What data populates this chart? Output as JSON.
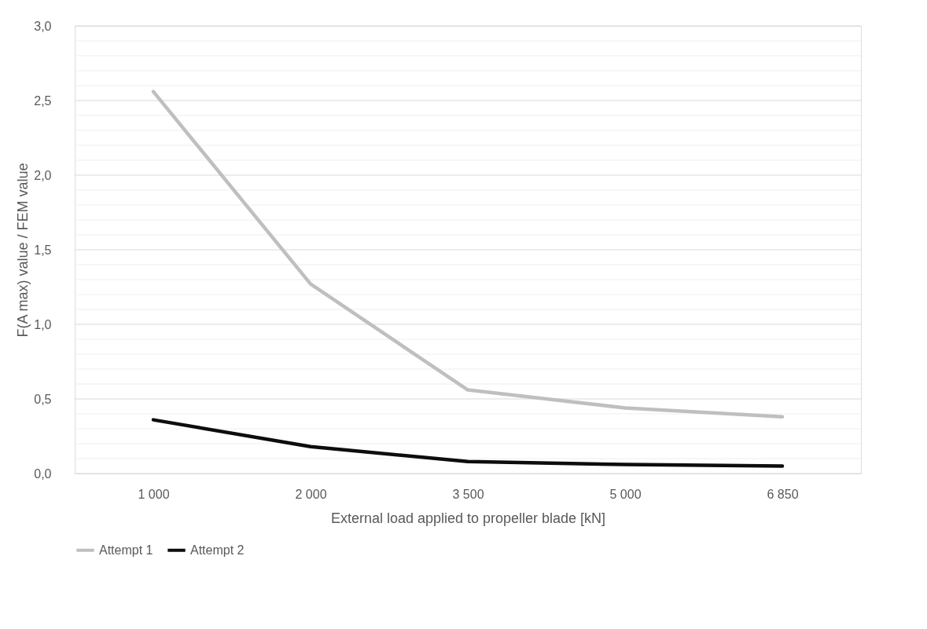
{
  "chart_data": {
    "type": "line",
    "xlabel": "External load applied to propeller blade [kN]",
    "ylabel": "F(A max) value / FEM value",
    "categories": [
      "1 000",
      "2 000",
      "3 500",
      "5 000",
      "6 850"
    ],
    "series": [
      {
        "name": "Attempt 1",
        "color": "#bfbfbf",
        "values": [
          2.56,
          1.27,
          0.56,
          0.44,
          0.38
        ]
      },
      {
        "name": "Attempt 2",
        "color": "#0d0d0d",
        "values": [
          0.36,
          0.18,
          0.08,
          0.06,
          0.05
        ]
      }
    ],
    "ylim": [
      0,
      3
    ],
    "yticks": [
      {
        "value": 0,
        "label": "0,0"
      },
      {
        "value": 0.1,
        "label": null
      },
      {
        "value": 0.2,
        "label": null
      },
      {
        "value": 0.3,
        "label": null
      },
      {
        "value": 0.4,
        "label": null
      },
      {
        "value": 0.5,
        "label": "0,5"
      },
      {
        "value": 0.6,
        "label": null
      },
      {
        "value": 0.7,
        "label": null
      },
      {
        "value": 0.8,
        "label": null
      },
      {
        "value": 0.9,
        "label": null
      },
      {
        "value": 1.0,
        "label": "1,0"
      },
      {
        "value": 1.1,
        "label": null
      },
      {
        "value": 1.2,
        "label": null
      },
      {
        "value": 1.3,
        "label": null
      },
      {
        "value": 1.4,
        "label": null
      },
      {
        "value": 1.5,
        "label": "1,5"
      },
      {
        "value": 1.6,
        "label": null
      },
      {
        "value": 1.7,
        "label": null
      },
      {
        "value": 1.8,
        "label": null
      },
      {
        "value": 1.9,
        "label": null
      },
      {
        "value": 2.0,
        "label": "2,0"
      },
      {
        "value": 2.1,
        "label": null
      },
      {
        "value": 2.2,
        "label": null
      },
      {
        "value": 2.3,
        "label": null
      },
      {
        "value": 2.4,
        "label": null
      },
      {
        "value": 2.5,
        "label": "2,5"
      },
      {
        "value": 2.6,
        "label": null
      },
      {
        "value": 2.7,
        "label": null
      },
      {
        "value": 2.8,
        "label": null
      },
      {
        "value": 2.9,
        "label": null
      },
      {
        "value": 3.0,
        "label": "3,0"
      }
    ],
    "grid": "y",
    "legend": "bottom",
    "marker": "none",
    "line_style": "solid"
  }
}
